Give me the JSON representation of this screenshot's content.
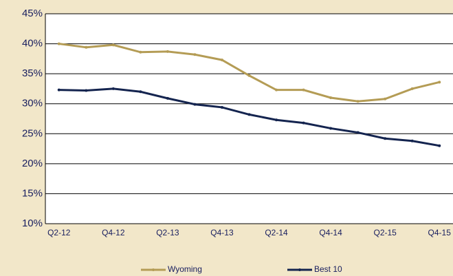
{
  "chart_data": {
    "type": "line",
    "categories": [
      "Q2-12",
      null,
      "Q4-12",
      null,
      "Q2-13",
      null,
      "Q4-13",
      null,
      "Q2-14",
      null,
      "Q4-14",
      null,
      "Q2-15",
      null,
      "Q4-15"
    ],
    "series": [
      {
        "name": "Wyoming",
        "color": "#b49c55",
        "values": [
          40.0,
          39.4,
          39.8,
          38.6,
          38.7,
          38.2,
          37.3,
          34.7,
          32.3,
          32.3,
          31.0,
          30.4,
          30.8,
          32.5,
          33.6
        ]
      },
      {
        "name": "Best 10",
        "color": "#14244f",
        "values": [
          32.3,
          32.2,
          32.5,
          32.0,
          30.9,
          29.9,
          29.4,
          28.2,
          27.3,
          26.8,
          25.9,
          25.2,
          24.2,
          23.8,
          23.0
        ]
      }
    ],
    "ylim": [
      10,
      45
    ],
    "yticks": [
      {
        "value": 10,
        "label": "10%"
      },
      {
        "value": 15,
        "label": "15%"
      },
      {
        "value": 20,
        "label": "20%"
      },
      {
        "value": 25,
        "label": "25%"
      },
      {
        "value": 30,
        "label": "30%"
      },
      {
        "value": 35,
        "label": "35%"
      },
      {
        "value": 40,
        "label": "40%"
      },
      {
        "value": 45,
        "label": "45%"
      }
    ],
    "grid": true,
    "legend": "bottom"
  }
}
